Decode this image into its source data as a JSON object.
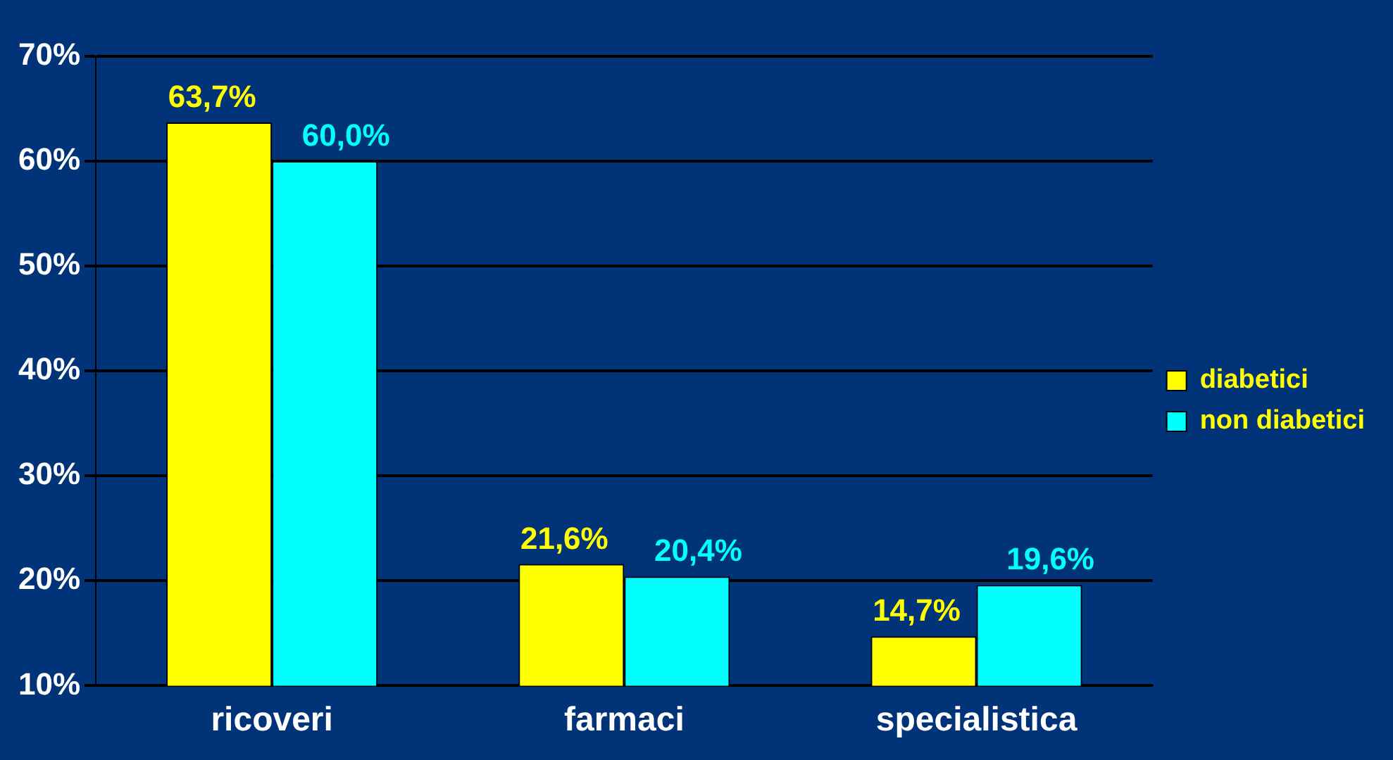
{
  "chart_data": {
    "type": "bar",
    "categories": [
      "ricoveri",
      "farmaci",
      "specialistica"
    ],
    "series": [
      {
        "name": "diabetici",
        "color": "#ffff00",
        "values": [
          63.7,
          21.6,
          14.7
        ],
        "value_labels": [
          "63,7%",
          "21,6%",
          "14,7%"
        ]
      },
      {
        "name": "non diabetici",
        "color": "#00ffff",
        "values": [
          60.0,
          20.4,
          19.6
        ],
        "value_labels": [
          "60,0%",
          "20,4%",
          "19,6%"
        ]
      }
    ],
    "ylim": [
      10,
      70
    ],
    "yticks": [
      {
        "value": 10,
        "label": "10%"
      },
      {
        "value": 20,
        "label": "20%"
      },
      {
        "value": 30,
        "label": "30%"
      },
      {
        "value": 40,
        "label": "40%"
      },
      {
        "value": 50,
        "label": "50%"
      },
      {
        "value": 60,
        "label": "60%"
      },
      {
        "value": 70,
        "label": "70%"
      }
    ],
    "grid": "y",
    "legend": "right"
  }
}
